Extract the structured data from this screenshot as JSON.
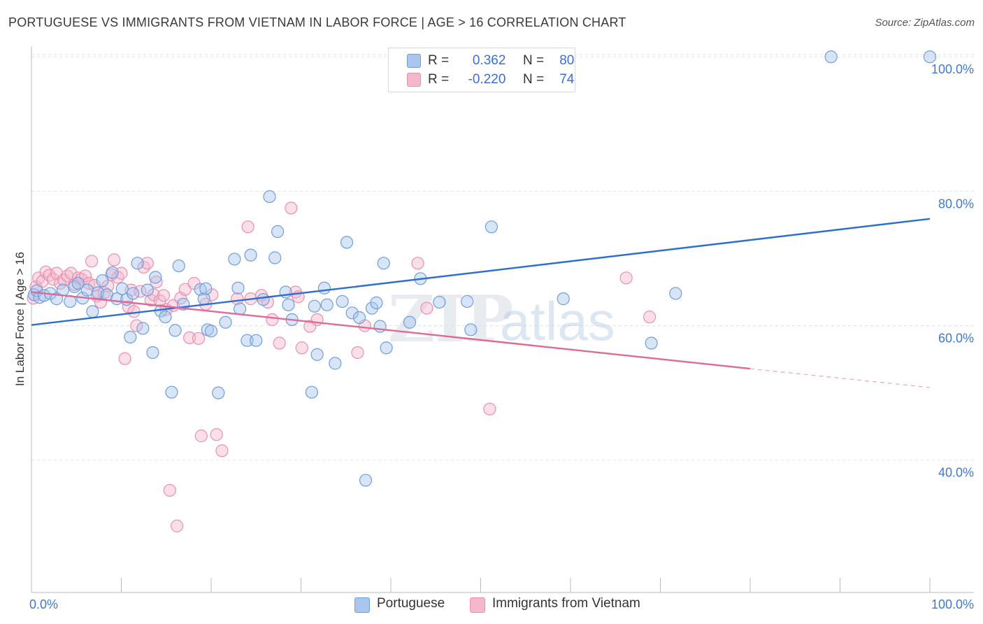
{
  "header": {
    "title": "PORTUGUESE VS IMMIGRANTS FROM VIETNAM IN LABOR FORCE | AGE > 16 CORRELATION CHART",
    "source": "Source: ZipAtlas.com"
  },
  "legend": {
    "series1": {
      "r_label": "R =",
      "r_value": "0.362",
      "n_label": "N =",
      "n_value": "80"
    },
    "series2": {
      "r_label": "R =",
      "r_value": "-0.220",
      "n_label": "N =",
      "n_value": "74"
    }
  },
  "bottom_legend": {
    "series1": "Portuguese",
    "series2": "Immigrants from Vietnam"
  },
  "watermark": {
    "zip": "ZIP",
    "atlas": "atlas"
  },
  "colors": {
    "blue_fill": "#a9c6ee",
    "blue_stroke": "#6f9ddd",
    "blue_line": "#2e6fce",
    "pink_fill": "#f5b8cb",
    "pink_stroke": "#ea8fad",
    "pink_line": "#e06a95",
    "axis_text_blue": "#3f78d4",
    "grid": "#e3e3e3"
  },
  "chart_data": {
    "type": "scatter",
    "title": "PORTUGUESE VS IMMIGRANTS FROM VIETNAM IN LABOR FORCE | AGE > 16 CORRELATION CHART",
    "xlabel": "",
    "ylabel": "In Labor Force | Age > 16",
    "xlim": [
      0,
      100
    ],
    "ylim": [
      20.3,
      102.0
    ],
    "x_tick_labels": [
      {
        "value": 0,
        "label": "0.0%"
      },
      {
        "value": 100,
        "label": "100.0%"
      }
    ],
    "y_tick_labels": [
      {
        "value": 40,
        "label": "40.0%"
      },
      {
        "value": 60,
        "label": "60.0%"
      },
      {
        "value": 80,
        "label": "80.0%"
      },
      {
        "value": 100,
        "label": "100.0%"
      }
    ],
    "grid": true,
    "legend_position": "top-center",
    "series": [
      {
        "name": "Portuguese",
        "r": 0.362,
        "n": 80,
        "trend": {
          "x": [
            0,
            100
          ],
          "y": [
            60.1,
            75.9
          ]
        },
        "points": [
          [
            0.3,
            64.6
          ],
          [
            0.6,
            65.2
          ],
          [
            0.9,
            64.2
          ],
          [
            1.4,
            64.5
          ],
          [
            2.1,
            64.8
          ],
          [
            2.8,
            64.0
          ],
          [
            3.5,
            65.3
          ],
          [
            4.3,
            63.6
          ],
          [
            4.8,
            65.8
          ],
          [
            5.2,
            66.3
          ],
          [
            5.7,
            64.1
          ],
          [
            6.2,
            65.3
          ],
          [
            6.8,
            62.1
          ],
          [
            7.4,
            64.9
          ],
          [
            7.9,
            66.7
          ],
          [
            8.4,
            64.6
          ],
          [
            9.0,
            67.9
          ],
          [
            9.5,
            64.0
          ],
          [
            10.1,
            65.5
          ],
          [
            10.6,
            63.9
          ],
          [
            11.0,
            58.3
          ],
          [
            11.3,
            64.8
          ],
          [
            11.8,
            69.3
          ],
          [
            12.4,
            59.6
          ],
          [
            12.9,
            65.3
          ],
          [
            13.5,
            56.0
          ],
          [
            13.8,
            67.2
          ],
          [
            14.4,
            62.2
          ],
          [
            14.9,
            61.3
          ],
          [
            15.6,
            50.1
          ],
          [
            16.0,
            59.3
          ],
          [
            16.4,
            68.9
          ],
          [
            16.9,
            63.2
          ],
          [
            18.8,
            65.4
          ],
          [
            19.2,
            64.0
          ],
          [
            19.4,
            65.5
          ],
          [
            19.6,
            59.4
          ],
          [
            20.0,
            59.2
          ],
          [
            20.8,
            50.0
          ],
          [
            21.6,
            60.5
          ],
          [
            22.6,
            69.9
          ],
          [
            23.0,
            65.6
          ],
          [
            23.2,
            62.5
          ],
          [
            24.0,
            57.8
          ],
          [
            24.4,
            70.5
          ],
          [
            25.0,
            57.8
          ],
          [
            25.8,
            63.9
          ],
          [
            26.5,
            79.2
          ],
          [
            27.1,
            70.1
          ],
          [
            27.4,
            74.0
          ],
          [
            28.3,
            65.0
          ],
          [
            28.6,
            63.1
          ],
          [
            29.0,
            60.9
          ],
          [
            31.2,
            50.1
          ],
          [
            31.5,
            62.9
          ],
          [
            31.8,
            55.7
          ],
          [
            32.6,
            65.6
          ],
          [
            32.9,
            63.1
          ],
          [
            33.8,
            54.4
          ],
          [
            34.6,
            63.6
          ],
          [
            35.1,
            72.4
          ],
          [
            35.7,
            61.9
          ],
          [
            36.5,
            61.2
          ],
          [
            37.2,
            37.0
          ],
          [
            37.9,
            62.6
          ],
          [
            38.4,
            63.4
          ],
          [
            38.8,
            59.9
          ],
          [
            39.2,
            69.3
          ],
          [
            39.5,
            56.7
          ],
          [
            42.1,
            60.5
          ],
          [
            43.3,
            67.0
          ],
          [
            45.4,
            63.5
          ],
          [
            48.5,
            63.6
          ],
          [
            48.9,
            59.4
          ],
          [
            51.2,
            74.7
          ],
          [
            59.2,
            64.0
          ],
          [
            69.0,
            57.4
          ],
          [
            71.7,
            64.8
          ],
          [
            89.0,
            100.0
          ],
          [
            100.0,
            100.0
          ]
        ]
      },
      {
        "name": "Immigrants from Vietnam",
        "r": -0.22,
        "n": 74,
        "trend": {
          "x": [
            0,
            80
          ],
          "y": [
            65.0,
            53.6
          ]
        },
        "trend_dashed_to": {
          "x": [
            80,
            100
          ],
          "y": [
            53.6,
            50.8
          ]
        },
        "points": [
          [
            0.2,
            64.1
          ],
          [
            0.5,
            65.8
          ],
          [
            0.8,
            67.1
          ],
          [
            1.2,
            66.6
          ],
          [
            1.6,
            68.0
          ],
          [
            2.0,
            67.5
          ],
          [
            2.4,
            66.9
          ],
          [
            2.8,
            67.8
          ],
          [
            3.2,
            66.3
          ],
          [
            3.6,
            66.8
          ],
          [
            4.0,
            67.4
          ],
          [
            4.4,
            67.8
          ],
          [
            4.8,
            66.1
          ],
          [
            5.2,
            67.1
          ],
          [
            5.6,
            66.9
          ],
          [
            6.0,
            67.4
          ],
          [
            6.4,
            66.3
          ],
          [
            6.7,
            69.6
          ],
          [
            7.0,
            66.0
          ],
          [
            7.3,
            64.4
          ],
          [
            7.7,
            63.5
          ],
          [
            8.1,
            64.9
          ],
          [
            8.5,
            65.9
          ],
          [
            8.9,
            67.6
          ],
          [
            9.2,
            69.8
          ],
          [
            9.6,
            67.2
          ],
          [
            10.0,
            67.8
          ],
          [
            10.4,
            55.1
          ],
          [
            10.8,
            62.8
          ],
          [
            11.1,
            65.3
          ],
          [
            11.4,
            62.1
          ],
          [
            11.7,
            60.0
          ],
          [
            12.1,
            65.1
          ],
          [
            12.5,
            68.7
          ],
          [
            12.9,
            69.3
          ],
          [
            13.3,
            63.8
          ],
          [
            13.6,
            64.6
          ],
          [
            13.9,
            66.5
          ],
          [
            14.3,
            63.7
          ],
          [
            14.7,
            64.5
          ],
          [
            15.0,
            62.4
          ],
          [
            15.4,
            35.5
          ],
          [
            15.8,
            63.0
          ],
          [
            16.2,
            30.2
          ],
          [
            16.6,
            64.1
          ],
          [
            17.1,
            65.4
          ],
          [
            17.6,
            58.2
          ],
          [
            18.1,
            66.3
          ],
          [
            18.6,
            58.1
          ],
          [
            18.9,
            43.6
          ],
          [
            19.4,
            63.2
          ],
          [
            20.1,
            64.6
          ],
          [
            20.6,
            43.8
          ],
          [
            21.2,
            41.4
          ],
          [
            22.9,
            64.0
          ],
          [
            24.1,
            74.7
          ],
          [
            24.4,
            64.0
          ],
          [
            25.6,
            64.5
          ],
          [
            26.3,
            63.5
          ],
          [
            26.8,
            60.9
          ],
          [
            27.6,
            57.4
          ],
          [
            28.9,
            77.5
          ],
          [
            29.4,
            65.0
          ],
          [
            29.7,
            64.3
          ],
          [
            30.1,
            56.7
          ],
          [
            31.0,
            59.9
          ],
          [
            31.8,
            60.9
          ],
          [
            36.3,
            56.0
          ],
          [
            37.1,
            60.0
          ],
          [
            43.0,
            69.3
          ],
          [
            44.0,
            62.6
          ],
          [
            51.0,
            47.6
          ],
          [
            66.2,
            67.1
          ],
          [
            68.8,
            61.3
          ]
        ]
      }
    ]
  }
}
